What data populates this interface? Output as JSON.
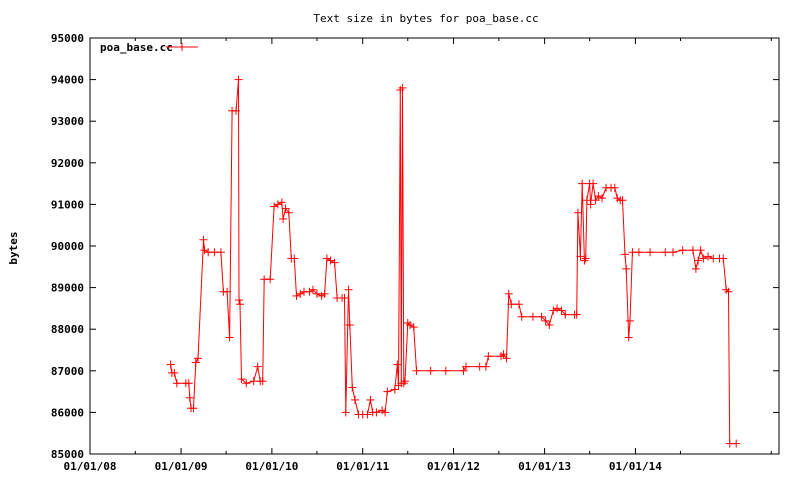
{
  "chart_data": {
    "type": "line",
    "title": "Text size in bytes for poa_base.cc",
    "xlabel": "",
    "ylabel": "bytes",
    "ylim": [
      85000,
      95000
    ],
    "xlim": [
      "2008-01-01",
      "2015-08-01"
    ],
    "y_ticks": [
      "85000",
      "86000",
      "87000",
      "88000",
      "89000",
      "90000",
      "91000",
      "92000",
      "93000",
      "94000",
      "95000"
    ],
    "y_tick_values": [
      85000,
      86000,
      87000,
      88000,
      89000,
      90000,
      91000,
      92000,
      93000,
      94000,
      95000
    ],
    "x_ticks": [
      "01/01/08",
      "01/01/09",
      "01/01/10",
      "01/01/11",
      "01/01/12",
      "01/01/13",
      "01/01/14"
    ],
    "x_tick_dates": [
      "2008-01-01",
      "2009-01-01",
      "2010-01-01",
      "2011-01-01",
      "2012-01-01",
      "2013-01-01",
      "2014-01-01"
    ],
    "grid": false,
    "legend_position": "top-left",
    "series": [
      {
        "name": "poa_base.cc",
        "color": "#ff0000",
        "marker": "plus",
        "points": [
          [
            "2008-11-20",
            87150
          ],
          [
            "2008-11-25",
            86950
          ],
          [
            "2008-12-05",
            86950
          ],
          [
            "2008-12-15",
            86700
          ],
          [
            "2009-01-20",
            86700
          ],
          [
            "2009-02-01",
            86700
          ],
          [
            "2009-02-05",
            86350
          ],
          [
            "2009-02-10",
            86100
          ],
          [
            "2009-02-20",
            86100
          ],
          [
            "2009-03-01",
            87200
          ],
          [
            "2009-03-10",
            87300
          ],
          [
            "2009-04-01",
            90150
          ],
          [
            "2009-04-05",
            89900
          ],
          [
            "2009-04-20",
            89850
          ],
          [
            "2009-05-15",
            89850
          ],
          [
            "2009-06-10",
            89850
          ],
          [
            "2009-06-20",
            88900
          ],
          [
            "2009-07-05",
            88900
          ],
          [
            "2009-07-15",
            87800
          ],
          [
            "2009-07-25",
            93250
          ],
          [
            "2009-08-10",
            93250
          ],
          [
            "2009-08-20",
            94000
          ],
          [
            "2009-08-22",
            88700
          ],
          [
            "2009-08-26",
            88600
          ],
          [
            "2009-09-01",
            86800
          ],
          [
            "2009-09-20",
            86700
          ],
          [
            "2009-10-20",
            86750
          ],
          [
            "2009-11-05",
            87100
          ],
          [
            "2009-11-15",
            86750
          ],
          [
            "2009-11-25",
            86750
          ],
          [
            "2009-12-01",
            89200
          ],
          [
            "2009-12-25",
            89200
          ],
          [
            "2010-01-10",
            90950
          ],
          [
            "2010-01-25",
            91000
          ],
          [
            "2010-02-10",
            91050
          ],
          [
            "2010-02-15",
            90650
          ],
          [
            "2010-02-25",
            90900
          ],
          [
            "2010-03-10",
            90800
          ],
          [
            "2010-03-20",
            89700
          ],
          [
            "2010-04-01",
            89700
          ],
          [
            "2010-04-10",
            88800
          ],
          [
            "2010-04-25",
            88850
          ],
          [
            "2010-05-10",
            88900
          ],
          [
            "2010-06-01",
            88900
          ],
          [
            "2010-06-15",
            88950
          ],
          [
            "2010-07-01",
            88850
          ],
          [
            "2010-07-20",
            88800
          ],
          [
            "2010-08-01",
            88850
          ],
          [
            "2010-08-10",
            89700
          ],
          [
            "2010-08-25",
            89650
          ],
          [
            "2010-09-10",
            89600
          ],
          [
            "2010-09-20",
            88750
          ],
          [
            "2010-10-10",
            88750
          ],
          [
            "2010-10-20",
            88750
          ],
          [
            "2010-10-25",
            86000
          ],
          [
            "2010-11-05",
            88950
          ],
          [
            "2010-11-10",
            88100
          ],
          [
            "2010-11-20",
            86600
          ],
          [
            "2010-12-01",
            86300
          ],
          [
            "2010-12-15",
            85950
          ],
          [
            "2011-01-01",
            85950
          ],
          [
            "2011-01-20",
            85950
          ],
          [
            "2011-02-01",
            86300
          ],
          [
            "2011-02-10",
            86000
          ],
          [
            "2011-02-25",
            86000
          ],
          [
            "2011-03-20",
            86050
          ],
          [
            "2011-04-01",
            86000
          ],
          [
            "2011-04-10",
            86500
          ],
          [
            "2011-05-10",
            86550
          ],
          [
            "2011-05-20",
            87150
          ],
          [
            "2011-05-25",
            86650
          ],
          [
            "2011-06-01",
            93750
          ],
          [
            "2011-06-05",
            86700
          ],
          [
            "2011-06-10",
            93800
          ],
          [
            "2011-06-15",
            86700
          ],
          [
            "2011-06-20",
            86750
          ],
          [
            "2011-07-01",
            88150
          ],
          [
            "2011-07-10",
            88100
          ],
          [
            "2011-07-25",
            88050
          ],
          [
            "2011-08-05",
            87000
          ],
          [
            "2011-10-01",
            87000
          ],
          [
            "2011-12-01",
            87000
          ],
          [
            "2012-02-10",
            87000
          ],
          [
            "2012-02-20",
            87100
          ],
          [
            "2012-04-15",
            87100
          ],
          [
            "2012-05-10",
            87100
          ],
          [
            "2012-05-20",
            87350
          ],
          [
            "2012-07-10",
            87350
          ],
          [
            "2012-07-20",
            87400
          ],
          [
            "2012-08-01",
            87300
          ],
          [
            "2012-08-10",
            88850
          ],
          [
            "2012-08-20",
            88600
          ],
          [
            "2012-09-20",
            88600
          ],
          [
            "2012-10-01",
            88300
          ],
          [
            "2012-11-15",
            88300
          ],
          [
            "2012-12-20",
            88300
          ],
          [
            "2013-01-05",
            88200
          ],
          [
            "2013-01-20",
            88100
          ],
          [
            "2013-02-05",
            88450
          ],
          [
            "2013-02-20",
            88500
          ],
          [
            "2013-03-10",
            88450
          ],
          [
            "2013-03-25",
            88350
          ],
          [
            "2013-05-01",
            88350
          ],
          [
            "2013-05-10",
            88350
          ],
          [
            "2013-05-15",
            90800
          ],
          [
            "2013-05-25",
            89750
          ],
          [
            "2013-06-01",
            91500
          ],
          [
            "2013-06-10",
            89650
          ],
          [
            "2013-06-15",
            89700
          ],
          [
            "2013-06-20",
            91100
          ],
          [
            "2013-07-01",
            91500
          ],
          [
            "2013-07-05",
            91000
          ],
          [
            "2013-07-15",
            91500
          ],
          [
            "2013-07-25",
            91100
          ],
          [
            "2013-08-05",
            91200
          ],
          [
            "2013-08-20",
            91150
          ],
          [
            "2013-09-05",
            91400
          ],
          [
            "2013-09-25",
            91400
          ],
          [
            "2013-10-10",
            91400
          ],
          [
            "2013-10-20",
            91150
          ],
          [
            "2013-11-01",
            91100
          ],
          [
            "2013-11-10",
            91100
          ],
          [
            "2013-11-20",
            89800
          ],
          [
            "2013-11-25",
            89450
          ],
          [
            "2013-12-05",
            87800
          ],
          [
            "2013-12-10",
            88200
          ],
          [
            "2013-12-20",
            89850
          ],
          [
            "2014-01-15",
            89850
          ],
          [
            "2014-03-01",
            89850
          ],
          [
            "2014-05-01",
            89850
          ],
          [
            "2014-06-01",
            89850
          ],
          [
            "2014-07-10",
            89900
          ],
          [
            "2014-08-20",
            89900
          ],
          [
            "2014-09-01",
            89450
          ],
          [
            "2014-09-10",
            89650
          ],
          [
            "2014-09-20",
            89900
          ],
          [
            "2014-10-01",
            89700
          ],
          [
            "2014-10-20",
            89750
          ],
          [
            "2014-11-10",
            89700
          ],
          [
            "2014-12-05",
            89700
          ],
          [
            "2014-12-20",
            89700
          ],
          [
            "2015-01-01",
            88950
          ],
          [
            "2015-01-10",
            88900
          ],
          [
            "2015-01-15",
            85250
          ],
          [
            "2015-02-10",
            85250
          ]
        ]
      }
    ]
  }
}
